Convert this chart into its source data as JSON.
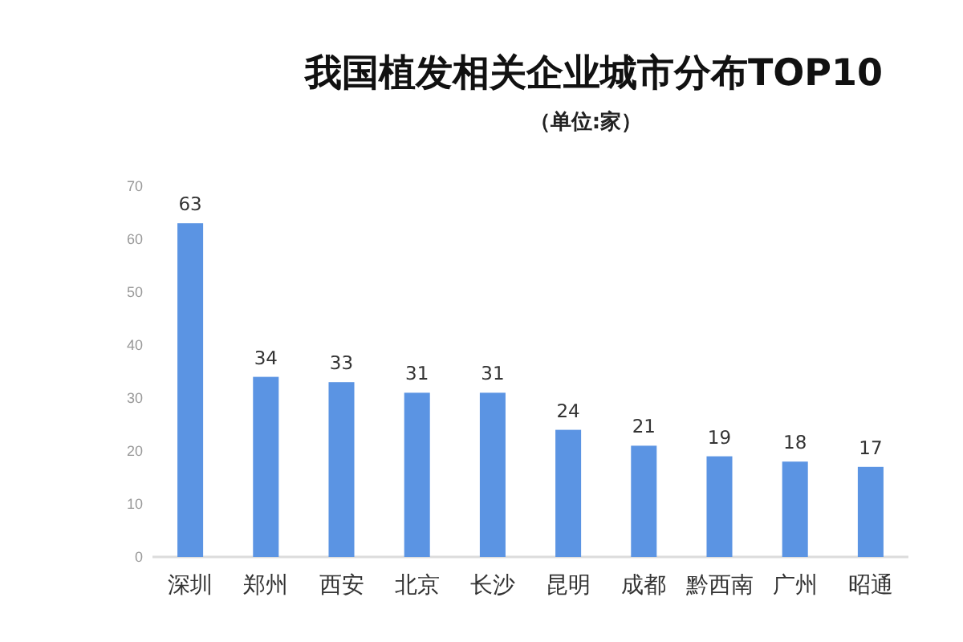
{
  "chart_data": {
    "type": "bar",
    "title": "我国植发相关企业城市分布TOP10",
    "subtitle": "（单位:家）",
    "categories": [
      "深圳",
      "郑州",
      "西安",
      "北京",
      "长沙",
      "昆明",
      "成都",
      "黔西南",
      "广州",
      "昭通"
    ],
    "values": [
      63,
      34,
      33,
      31,
      31,
      24,
      21,
      19,
      18,
      17
    ],
    "color": "#5b94e3",
    "ylim": [
      0,
      70
    ],
    "yticks": [
      0,
      10,
      20,
      30,
      40,
      50,
      60,
      70
    ],
    "grid": false,
    "data_labels": true
  }
}
